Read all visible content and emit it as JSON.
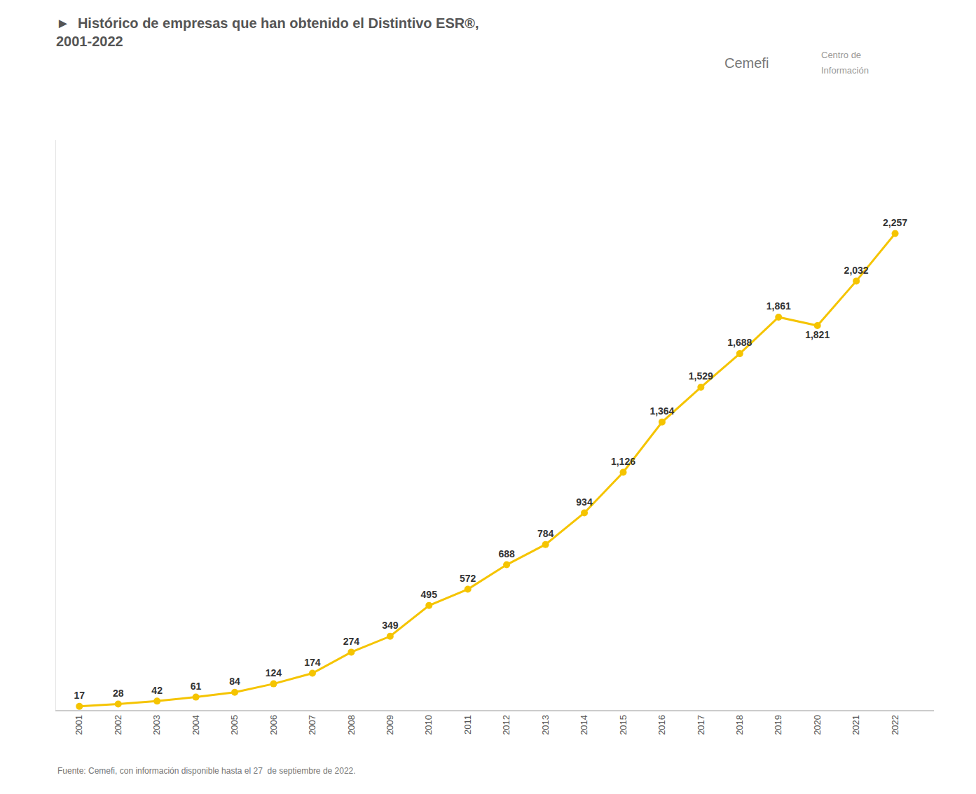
{
  "chart_data": {
    "type": "line",
    "title": "►  Histórico de empresas que han obtenido el Distintivo ESR®,",
    "subtitle": "2001-2022",
    "x": [
      2001,
      2002,
      2003,
      2004,
      2005,
      2006,
      2007,
      2008,
      2009,
      2010,
      2011,
      2012,
      2013,
      2014,
      2015,
      2016,
      2017,
      2018,
      2019,
      2020,
      2021,
      2022
    ],
    "values": [
      17,
      28,
      42,
      61,
      84,
      124,
      174,
      274,
      349,
      495,
      572,
      688,
      784,
      934,
      1126,
      1364,
      1529,
      1688,
      1861,
      1821,
      2032,
      2257
    ],
    "value_labels": [
      "17",
      "28",
      "42",
      "61",
      "84",
      "124",
      "174",
      "274",
      "349",
      "495",
      "572",
      "688",
      "784",
      "934",
      "1,126",
      "1,364",
      "1,529",
      "1,688",
      "1,861",
      "1,821",
      "2,032",
      "2,257"
    ],
    "color": "#F5C400",
    "marker": "circle",
    "xlim": [
      2000.4,
      2023.0
    ],
    "xticks": [
      2001,
      2002,
      2003,
      2004,
      2005,
      2006,
      2007,
      2008,
      2009,
      2010,
      2011,
      2012,
      2013,
      2014,
      2015,
      2016,
      2017,
      2018,
      2019,
      2020,
      2021,
      2022
    ],
    "ylim": [
      0,
      2700
    ],
    "yticks": [],
    "tick_labels": "x",
    "grid": false,
    "data_labels": true,
    "annotations": [
      "Fuente: Cemefi, con información disponible hasta el 27  de septiembre de 2022.",
      "Cemefi",
      "Centro de",
      "Información"
    ]
  }
}
